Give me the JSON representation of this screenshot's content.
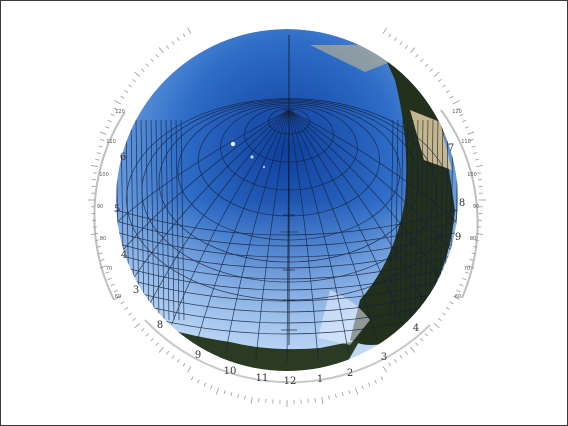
{
  "figure": {
    "image_semantic": "sun-path-diagram-fisheye-sky-photo",
    "left_scale_labels": [
      "6",
      "5",
      "4",
      "3"
    ],
    "right_scale_labels": [
      "7",
      "8",
      "9"
    ],
    "bottom_hour_labels": [
      "8",
      "9",
      "10",
      "11",
      "12",
      "1",
      "2",
      "3",
      "4"
    ],
    "left_tick_labels": [
      "120",
      "110",
      "100",
      "90",
      "80",
      "70",
      "60"
    ],
    "right_tick_labels": [
      "120",
      "110",
      "100",
      "90",
      "80",
      "70",
      "60"
    ],
    "colors": {
      "sky_top": "#1f58b6",
      "sky_bottom": "#8fb8e6",
      "grid_line": "#15203a",
      "trees": "#24301c",
      "frame_border": "#3a3a3a"
    }
  }
}
